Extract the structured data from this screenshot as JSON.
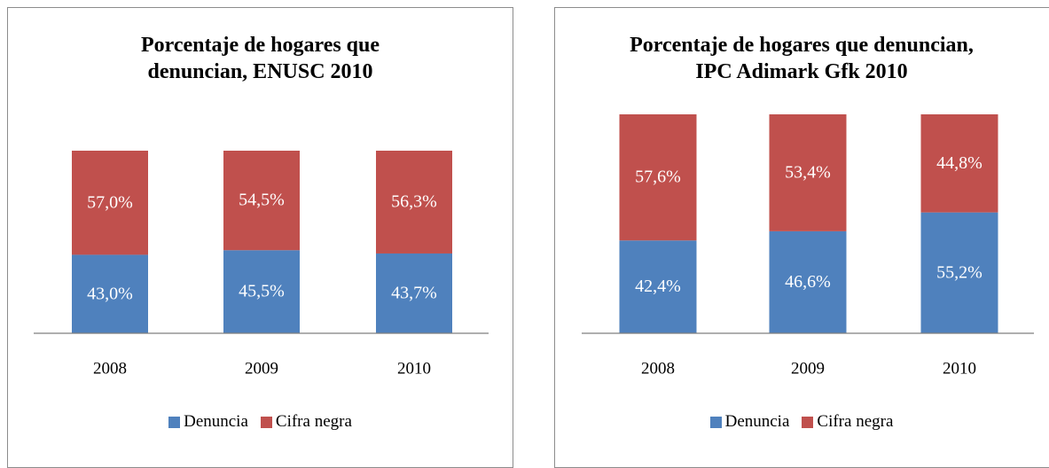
{
  "chart_data": [
    {
      "type": "bar",
      "stacked": true,
      "title": "Porcentaje de hogares que denuncian, ENUSC 2010",
      "categories": [
        "2008",
        "2009",
        "2010"
      ],
      "series": [
        {
          "name": "Denuncia",
          "color": "#4f81bd",
          "values": [
            43.0,
            45.5,
            43.7
          ],
          "value_labels": [
            "43,0%",
            "45,5%",
            "43,7%"
          ]
        },
        {
          "name": "Cifra negra",
          "color": "#c0504d",
          "values": [
            57.0,
            54.5,
            56.3
          ],
          "value_labels": [
            "57,0%",
            "54,5%",
            "56,3%"
          ]
        }
      ],
      "ylim": [
        0,
        100
      ],
      "legend": "bottom"
    },
    {
      "type": "bar",
      "stacked": true,
      "title": "Porcentaje de hogares que denuncian, IPC Adimark Gfk 2010",
      "categories": [
        "2008",
        "2009",
        "2010"
      ],
      "series": [
        {
          "name": "Denuncia",
          "color": "#4f81bd",
          "values": [
            42.4,
            46.6,
            55.2
          ],
          "value_labels": [
            "42,4%",
            "46,6%",
            "55,2%"
          ]
        },
        {
          "name": "Cifra negra",
          "color": "#c0504d",
          "values": [
            57.6,
            53.4,
            44.8
          ],
          "value_labels": [
            "57,6%",
            "53,4%",
            "44,8%"
          ]
        }
      ],
      "ylim": [
        0,
        100
      ],
      "legend": "bottom"
    }
  ]
}
